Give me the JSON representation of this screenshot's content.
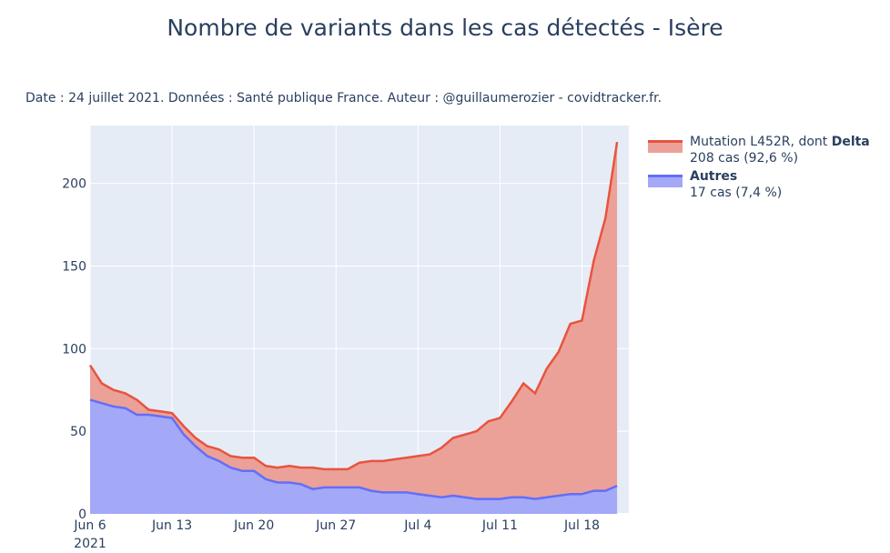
{
  "title": "Nombre de variants dans les cas détectés - Isère",
  "subtitle": "Date : 24 juillet 2021. Données : Santé publique France. Auteur : @guillaumerozier - covidtracker.fr.",
  "colors": {
    "delta_line": "#e8533f",
    "delta_fill": "#eba197",
    "autres_line": "#636efa",
    "autres_fill": "#a3a9f7",
    "plot_bg": "#e5ecf6",
    "grid": "#ffffff",
    "text": "#2a3f5f"
  },
  "legend": {
    "delta": {
      "name_prefix": "Mutation L452R, dont ",
      "name_bold": "Delta",
      "detail": "208 cas (92,6 %)"
    },
    "autres": {
      "name_bold": "Autres",
      "detail": "17 cas (7,4 %)"
    }
  },
  "chart_data": {
    "type": "area",
    "stacked": true,
    "x_start": "2021-06-06",
    "x_end": "2021-07-22",
    "xticks": [
      {
        "date": "2021-06-06",
        "label": "Jun 6",
        "sublabel": "2021"
      },
      {
        "date": "2021-06-13",
        "label": "Jun 13"
      },
      {
        "date": "2021-06-20",
        "label": "Jun 20"
      },
      {
        "date": "2021-06-27",
        "label": "Jun 27"
      },
      {
        "date": "2021-07-04",
        "label": "Jul 4"
      },
      {
        "date": "2021-07-11",
        "label": "Jul 11"
      },
      {
        "date": "2021-07-18",
        "label": "Jul 18"
      }
    ],
    "ylim": [
      0,
      235
    ],
    "yticks": [
      0,
      50,
      100,
      150,
      200
    ],
    "grid": true,
    "legend_position": "right",
    "series": [
      {
        "name": "Autres",
        "values": [
          69,
          67,
          65,
          64,
          60,
          60,
          59,
          58,
          48,
          41,
          35,
          32,
          28,
          26,
          26,
          21,
          19,
          19,
          18,
          15,
          16,
          16,
          16,
          16,
          14,
          13,
          13,
          13,
          12,
          11,
          10,
          11,
          10,
          9,
          9,
          9,
          10,
          10,
          9,
          10,
          11,
          12,
          12,
          14,
          14,
          17
        ]
      },
      {
        "name": "Mutation L452R, dont Delta",
        "values": [
          21,
          12,
          10,
          9,
          9,
          3,
          3,
          3,
          5,
          5,
          6,
          7,
          7,
          8,
          8,
          8,
          9,
          10,
          10,
          13,
          11,
          11,
          11,
          15,
          18,
          19,
          20,
          21,
          23,
          25,
          30,
          35,
          38,
          41,
          47,
          49,
          58,
          69,
          64,
          78,
          87,
          103,
          105,
          139,
          165,
          208
        ]
      }
    ]
  }
}
